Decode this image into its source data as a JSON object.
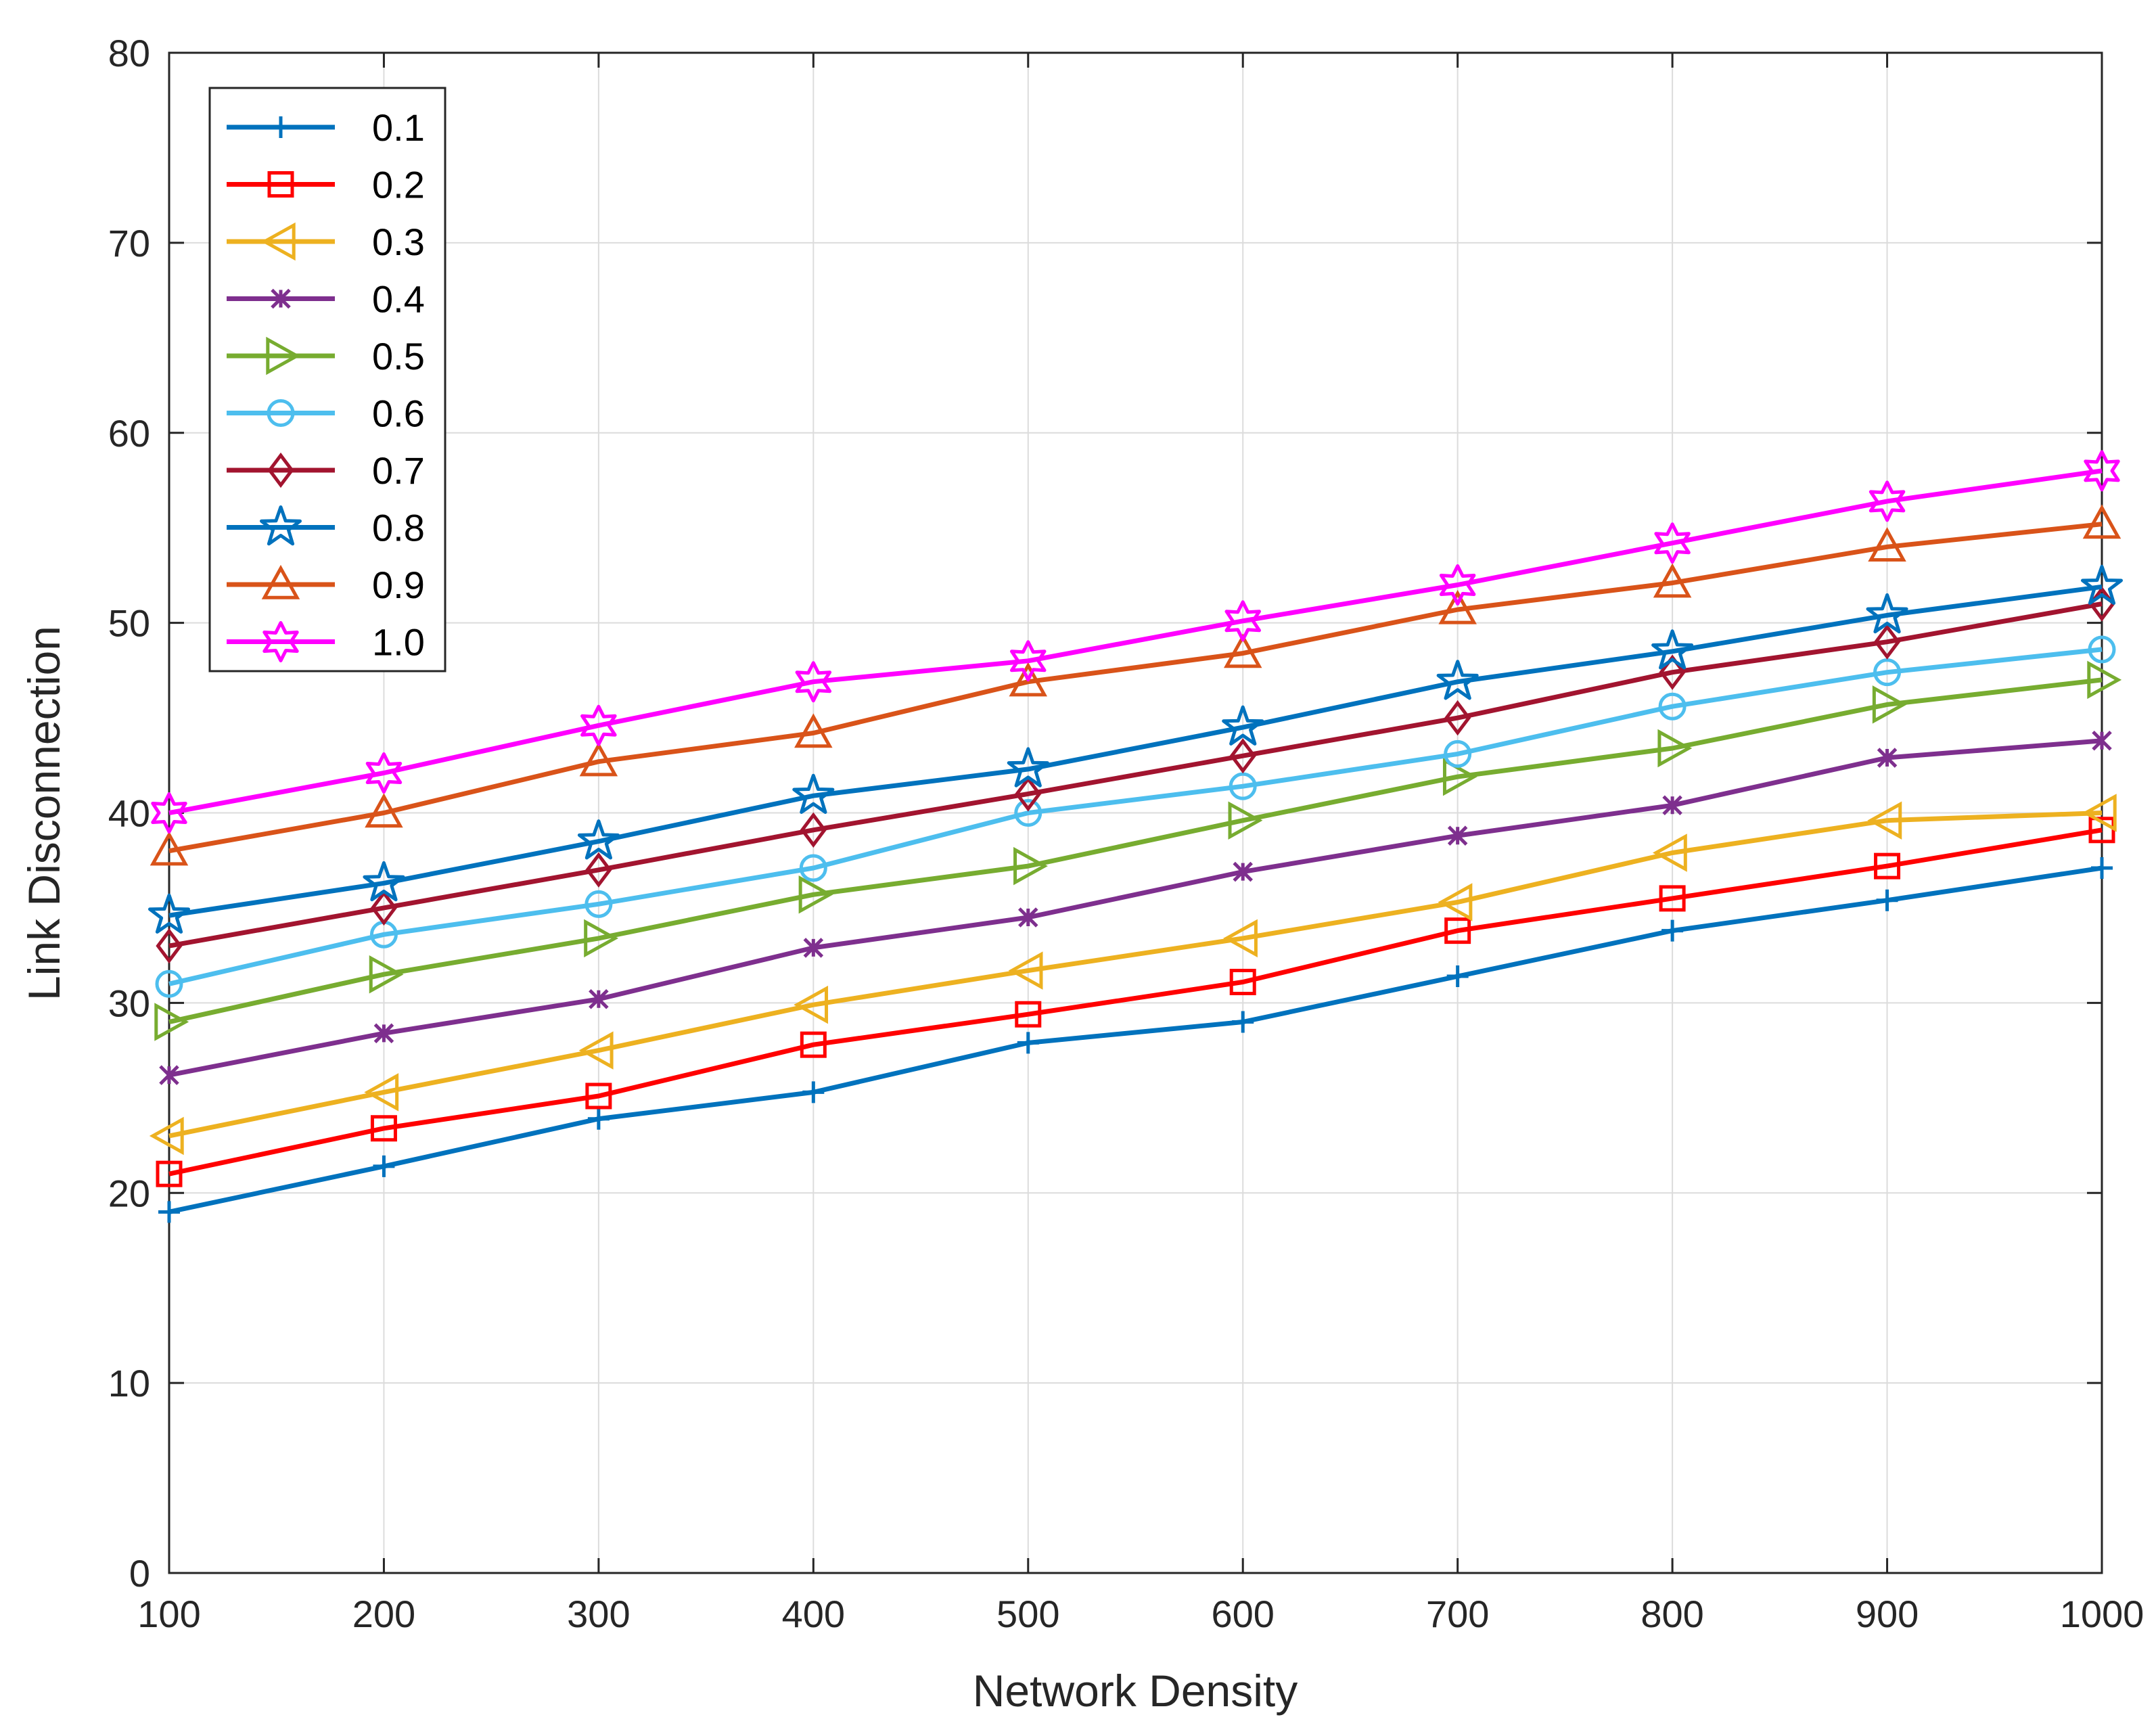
{
  "chart_data": {
    "type": "line",
    "title": "",
    "xlabel": "Network Density",
    "ylabel": "Link Disconnection",
    "xlim": [
      100,
      1000
    ],
    "ylim": [
      0,
      80
    ],
    "xticks": [
      "100",
      "200",
      "300",
      "400",
      "500",
      "600",
      "700",
      "800",
      "900",
      "1000"
    ],
    "yticks": [
      "0",
      "10",
      "20",
      "30",
      "40",
      "50",
      "60",
      "70",
      "80"
    ],
    "grid": true,
    "legend_position": "top-left",
    "x": [
      100,
      200,
      300,
      400,
      500,
      600,
      700,
      800,
      900,
      1000
    ],
    "series": [
      {
        "name": "0.1",
        "color": "#0072BD",
        "marker": "plus",
        "values": [
          19,
          21.4,
          23.9,
          25.3,
          27.9,
          29,
          31.4,
          33.8,
          35.4,
          37.1
        ]
      },
      {
        "name": "0.2",
        "color": "#FF0000",
        "marker": "square",
        "values": [
          21,
          23.4,
          25.1,
          27.8,
          29.4,
          31.1,
          33.8,
          35.5,
          37.2,
          39.1
        ]
      },
      {
        "name": "0.3",
        "color": "#EDB120",
        "marker": "triangle-left",
        "values": [
          23,
          25.3,
          27.5,
          29.9,
          31.7,
          33.4,
          35.3,
          37.9,
          39.6,
          40
        ]
      },
      {
        "name": "0.4",
        "color": "#7E2F8E",
        "marker": "asterisk",
        "values": [
          26.2,
          28.4,
          30.2,
          32.9,
          34.5,
          36.9,
          38.8,
          40.4,
          42.9,
          43.8
        ]
      },
      {
        "name": "0.5",
        "color": "#77AC30",
        "marker": "triangle-right",
        "values": [
          29,
          31.5,
          33.4,
          35.7,
          37.2,
          39.6,
          41.9,
          43.4,
          45.7,
          47
        ]
      },
      {
        "name": "0.6",
        "color": "#4DBEEE",
        "marker": "circle",
        "values": [
          31,
          33.6,
          35.2,
          37.1,
          40,
          41.4,
          43.1,
          45.6,
          47.4,
          48.6
        ]
      },
      {
        "name": "0.7",
        "color": "#A2142F",
        "marker": "diamond",
        "values": [
          33,
          35,
          37,
          39.1,
          41,
          43,
          45,
          47.4,
          49,
          51
        ]
      },
      {
        "name": "0.8",
        "color": "#0072BD",
        "marker": "pentagram",
        "values": [
          34.6,
          36.3,
          38.5,
          40.9,
          42.3,
          44.5,
          46.9,
          48.5,
          50.4,
          51.9
        ]
      },
      {
        "name": "0.9",
        "color": "#D95319",
        "marker": "triangle-up",
        "values": [
          38,
          40,
          42.7,
          44.2,
          46.9,
          48.4,
          50.7,
          52.1,
          54,
          55.2
        ]
      },
      {
        "name": "1.0",
        "color": "#FF00FF",
        "marker": "hexagram",
        "values": [
          40,
          42.1,
          44.6,
          46.9,
          48,
          50.1,
          52,
          54.2,
          56.4,
          58
        ]
      }
    ]
  }
}
